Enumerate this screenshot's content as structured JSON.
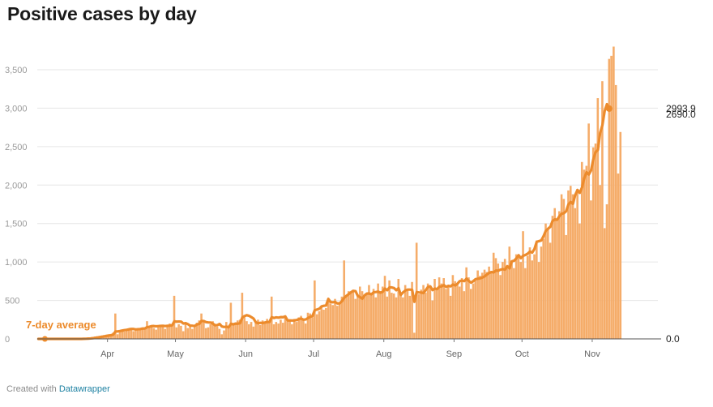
{
  "chart_data": {
    "type": "bar",
    "title": "Positive cases by day",
    "xlabel": "",
    "ylabel": "",
    "x_range": [
      "2020-03-01",
      "2020-11-30"
    ],
    "ylim": [
      0,
      3900
    ],
    "y_ticks": [
      0,
      500,
      1000,
      1500,
      2000,
      2500,
      3000,
      3500
    ],
    "y_tick_labels": [
      "0",
      "500",
      "1,000",
      "1,500",
      "2,000",
      "2,500",
      "3,000",
      "3,500"
    ],
    "x_ticks": [
      "2020-04-01",
      "2020-05-01",
      "2020-06-01",
      "2020-07-01",
      "2020-08-01",
      "2020-09-01",
      "2020-10-01",
      "2020-11-01"
    ],
    "x_tick_labels": [
      "Apr",
      "May",
      "Jun",
      "Jul",
      "Aug",
      "Sep",
      "Oct",
      "Nov"
    ],
    "grid": true,
    "colors": {
      "bars": "#f5ac69",
      "line": "#ec8b2c"
    },
    "annotation": "7-day average",
    "end_labels": {
      "average": {
        "value": 2993.9,
        "label": "2993.9"
      },
      "daily": {
        "value": 2690.0,
        "label": "2690.0"
      },
      "baseline": {
        "value": 0.0,
        "label": "0.0"
      }
    },
    "series": [
      {
        "name": "Positive cases",
        "kind": "bars",
        "start": "2020-03-01",
        "values": [
          0,
          0,
          0,
          0,
          0,
          0,
          0,
          0,
          0,
          0,
          0,
          0,
          0,
          0,
          0,
          0,
          0,
          0,
          0,
          0,
          5,
          8,
          12,
          15,
          22,
          30,
          35,
          40,
          45,
          50,
          55,
          60,
          55,
          80,
          330,
          60,
          90,
          100,
          95,
          110,
          120,
          115,
          100,
          130,
          140,
          120,
          150,
          135,
          230,
          160,
          180,
          140,
          120,
          150,
          170,
          180,
          130,
          160,
          200,
          175,
          560,
          150,
          190,
          170,
          100,
          200,
          140,
          160,
          130,
          170,
          210,
          240,
          330,
          220,
          140,
          150,
          190,
          230,
          170,
          160,
          130,
          60,
          110,
          220,
          170,
          470,
          180,
          200,
          240,
          250,
          600,
          280,
          230,
          190,
          220,
          160,
          210,
          250,
          180,
          240,
          220,
          260,
          210,
          550,
          190,
          220,
          200,
          250,
          210,
          300,
          230,
          240,
          190,
          260,
          220,
          280,
          300,
          250,
          200,
          340,
          330,
          280,
          760,
          320,
          360,
          420,
          380,
          400,
          500,
          460,
          440,
          520,
          430,
          480,
          550,
          1020,
          560,
          620,
          600,
          640,
          520,
          580,
          680,
          620,
          560,
          600,
          700,
          580,
          650,
          540,
          720,
          620,
          680,
          820,
          550,
          760,
          600,
          590,
          540,
          780,
          600,
          540,
          700,
          650,
          560,
          740,
          80,
          1250,
          580,
          640,
          700,
          600,
          720,
          680,
          500,
          780,
          650,
          800,
          720,
          790,
          650,
          700,
          560,
          830,
          750,
          720,
          680,
          790,
          620,
          930,
          800,
          650,
          720,
          760,
          890,
          820,
          860,
          900,
          870,
          940,
          880,
          1120,
          1050,
          980,
          830,
          1000,
          1040,
          930,
          1200,
          1000,
          920,
          1100,
          1060,
          1000,
          1400,
          920,
          1080,
          1190,
          1020,
          1100,
          1280,
          1000,
          1200,
          1300,
          1500,
          1430,
          1250,
          1600,
          1700,
          1550,
          1660,
          1880,
          1820,
          1350,
          1930,
          1990,
          1880,
          1700,
          1950,
          1500,
          2300,
          2200,
          2250,
          2800,
          1800,
          2490,
          2540,
          3130,
          2000,
          3350,
          1440,
          1750,
          3640,
          3680,
          3800,
          3300,
          2150,
          2690
        ]
      },
      {
        "name": "7-day average",
        "kind": "line",
        "start": "2020-03-01",
        "values": [
          0,
          0,
          0,
          0,
          0,
          0,
          0,
          0,
          0,
          0,
          0,
          0,
          0,
          0,
          0,
          0,
          0,
          0,
          0,
          0,
          1,
          2,
          4,
          6,
          9,
          13,
          17,
          22,
          27,
          32,
          38,
          43,
          48,
          54,
          96,
          97,
          102,
          108,
          114,
          118,
          125,
          129,
          129,
          123,
          126,
          128,
          134,
          136,
          152,
          158,
          166,
          167,
          164,
          166,
          169,
          170,
          167,
          170,
          172,
          175,
          228,
          224,
          226,
          224,
          200,
          205,
          192,
          172,
          171,
          168,
          187,
          195,
          234,
          232,
          218,
          214,
          213,
          199,
          177,
          179,
          194,
          161,
          155,
          159,
          151,
          197,
          189,
          199,
          197,
          203,
          277,
          297,
          308,
          300,
          283,
          264,
          215,
          204,
          209,
          206,
          213,
          219,
          220,
          282,
          272,
          280,
          276,
          283,
          282,
          292,
          241,
          240,
          239,
          240,
          245,
          257,
          264,
          250,
          252,
          271,
          287,
          297,
          373,
          381,
          392,
          422,
          430,
          434,
          520,
          479,
          476,
          480,
          461,
          462,
          491,
          534,
          560,
          582,
          606,
          624,
          621,
          559,
          544,
          523,
          566,
          589,
          590,
          580,
          605,
          609,
          614,
          601,
          611,
          654,
          633,
          669,
          669,
          661,
          633,
          659,
          572,
          605,
          629,
          641,
          641,
          637,
          482,
          608,
          604,
          602,
          597,
          634,
          675,
          683,
          635,
          654,
          647,
          678,
          683,
          700,
          675,
          690,
          683,
          707,
          695,
          717,
          751,
          758,
          751,
          783,
          754,
          731,
          751,
          777,
          782,
          787,
          798,
          813,
          837,
          858,
          869,
          865,
          888,
          887,
          900,
          908,
          900,
          945,
          918,
          1009,
          1016,
          1046,
          1088,
          1050,
          1081,
          1091,
          1108,
          1135,
          1122,
          1169,
          1262,
          1271,
          1280,
          1335,
          1404,
          1432,
          1457,
          1534,
          1554,
          1548,
          1594,
          1627,
          1634,
          1660,
          1749,
          1780,
          1757,
          1871,
          1936,
          1899,
          1968,
          2092,
          2166,
          2137,
          2191,
          2336,
          2429,
          2457,
          2678,
          2780,
          2962,
          3051,
          2994
        ]
      }
    ]
  },
  "footer": {
    "prefix": "Created with",
    "link": "Datawrapper"
  }
}
